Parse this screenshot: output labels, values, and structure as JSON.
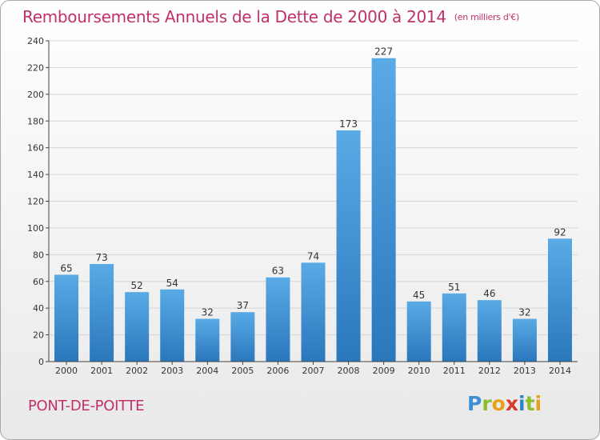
{
  "header": {
    "title": "Remboursements Annuels de la Dette de 2000 à 2014",
    "unit": "(en milliers d'€)"
  },
  "footer": {
    "commune": "PONT-DE-POITTE",
    "logo": "Proxiti"
  },
  "colors": {
    "accent": "#c0306a",
    "bar_top": "#5aaae6",
    "bar_bottom": "#2a77bc"
  },
  "chart_data": {
    "type": "bar",
    "title": "Remboursements Annuels de la Dette de 2000 à 2014",
    "subtitle": "(en milliers d'€)",
    "xlabel": "",
    "ylabel": "",
    "categories": [
      "2000",
      "2001",
      "2002",
      "2003",
      "2004",
      "2005",
      "2006",
      "2007",
      "2008",
      "2009",
      "2010",
      "2011",
      "2012",
      "2013",
      "2014"
    ],
    "values": [
      65,
      73,
      52,
      54,
      32,
      37,
      63,
      74,
      173,
      227,
      45,
      51,
      46,
      32,
      92
    ],
    "ylim": [
      0,
      240
    ],
    "yticks": [
      0,
      20,
      40,
      60,
      80,
      100,
      120,
      140,
      160,
      180,
      200,
      220,
      240
    ],
    "grid": true,
    "legend": "none"
  }
}
